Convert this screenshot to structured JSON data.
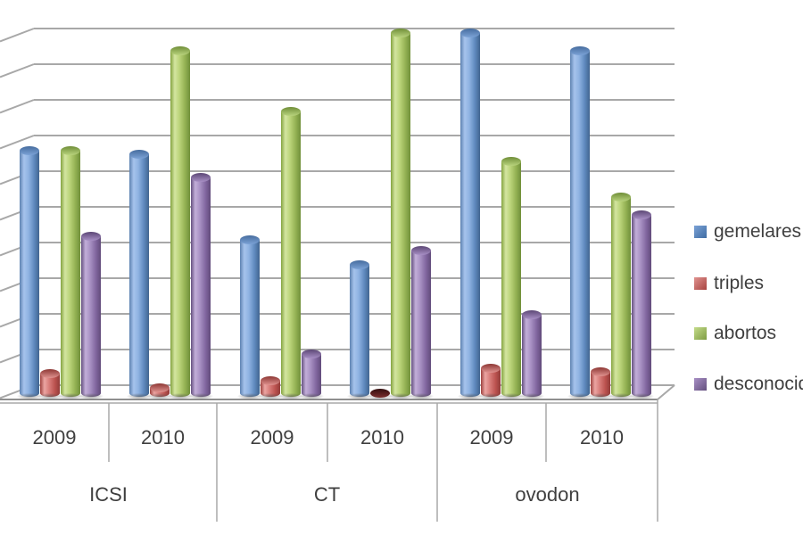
{
  "chart_data": {
    "type": "bar",
    "subtype": "3d-cylinder-clustered",
    "title": "",
    "categories": [
      {
        "group": "ICSI",
        "year": "2009"
      },
      {
        "group": "ICSI",
        "year": "2010"
      },
      {
        "group": "CT",
        "year": "2009"
      },
      {
        "group": "CT",
        "year": "2010"
      },
      {
        "group": "ovodon",
        "year": "2009"
      },
      {
        "group": "ovodon",
        "year": "2010"
      }
    ],
    "group_labels": [
      "ICSI",
      "CT",
      "ovodon"
    ],
    "series": [
      {
        "name": "gemelares",
        "color": "#4F81BD",
        "values": [
          6.9,
          6.8,
          4.4,
          3.7,
          10.2,
          9.7
        ]
      },
      {
        "name": "triples",
        "color": "#C0504D",
        "values": [
          0.65,
          0.25,
          0.45,
          0.1,
          0.8,
          0.7
        ]
      },
      {
        "name": "abortos",
        "color": "#9BBB59",
        "values": [
          6.9,
          9.7,
          8.0,
          10.2,
          6.6,
          5.6
        ]
      },
      {
        "name": "desconocido",
        "color": "#8064A2",
        "values": [
          4.5,
          6.15,
          1.2,
          4.1,
          2.3,
          5.1
        ]
      }
    ],
    "value_axis": {
      "labels_visible": false,
      "unit": "gridline-steps",
      "ylim": [
        0,
        10.3
      ],
      "gridline_count": 11,
      "gridline_step": 1,
      "grid": true
    },
    "legend": {
      "position": "right",
      "entries": [
        "gemelares",
        "triples",
        "abortos",
        "desconocido"
      ]
    }
  }
}
